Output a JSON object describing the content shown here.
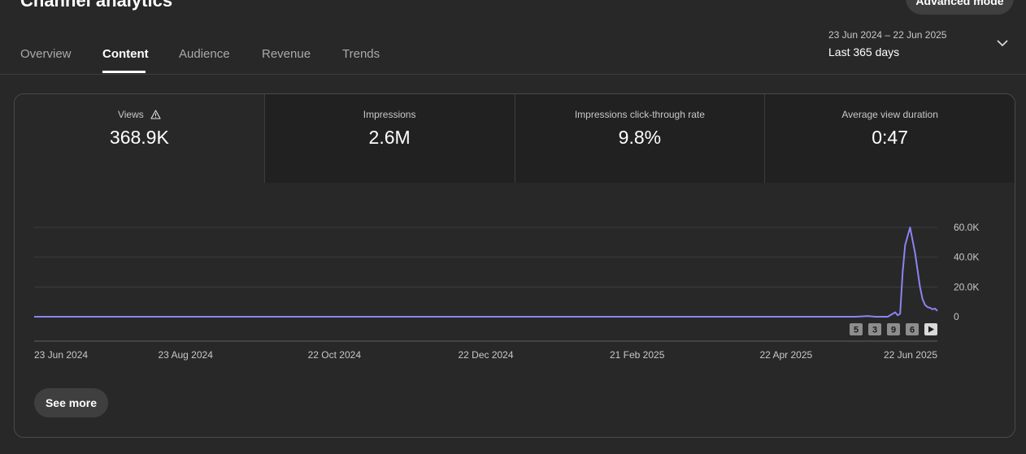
{
  "page": {
    "title": "Channel analytics",
    "advanced_mode_label": "Advanced mode"
  },
  "tabs": [
    {
      "label": "Overview",
      "active": false
    },
    {
      "label": "Content",
      "active": true
    },
    {
      "label": "Audience",
      "active": false
    },
    {
      "label": "Revenue",
      "active": false
    },
    {
      "label": "Trends",
      "active": false
    }
  ],
  "date_range": {
    "dates": "23 Jun 2024 – 22 Jun 2025",
    "label": "Last 365 days",
    "icon": "chevron-down-icon"
  },
  "metrics": [
    {
      "label": "Views",
      "value": "368.9K",
      "icon": "warning-icon",
      "selected": true
    },
    {
      "label": "Impressions",
      "value": "2.6M",
      "selected": false
    },
    {
      "label": "Impressions click-through rate",
      "value": "9.8%",
      "selected": false
    },
    {
      "label": "Average view duration",
      "value": "0:47",
      "selected": false
    }
  ],
  "chart_data": {
    "type": "line",
    "series": [
      {
        "color": "#8c84f0",
        "x": [
          "23 Jun 2024",
          "1 May 2025",
          "20 May 2025",
          "25 May 2025",
          "28 May 2025",
          "2 Jun 2025",
          "5 Jun 2025",
          "6 Jun 2025",
          "7 Jun 2025",
          "8 Jun 2025",
          "9 Jun 2025",
          "11 Jun 2025",
          "13 Jun 2025",
          "15 Jun 2025",
          "16 Jun 2025",
          "17 Jun 2025",
          "18 Jun 2025",
          "19 Jun 2025",
          "20 Jun 2025",
          "21 Jun 2025",
          "22 Jun 2025"
        ],
        "values": [
          0,
          0,
          0,
          500,
          0,
          0,
          3000,
          1000,
          2000,
          30000,
          48000,
          60000,
          43000,
          20000,
          12000,
          8000,
          6500,
          6000,
          5000,
          5500,
          4000
        ]
      }
    ],
    "ylim": [
      0,
      60000
    ],
    "y_ticks": [
      "60.0K",
      "40.0K",
      "20.0K",
      "0"
    ],
    "x_ticks": [
      "23 Jun 2024",
      "23 Aug 2024",
      "22 Oct 2024",
      "22 Dec 2024",
      "21 Feb 2025",
      "22 Apr 2025",
      "22 Jun 2025"
    ],
    "grid": true,
    "markers": [
      "5",
      "3",
      "9",
      "6"
    ],
    "play_icon": "play-icon"
  },
  "actions": {
    "see_more_label": "See more"
  }
}
